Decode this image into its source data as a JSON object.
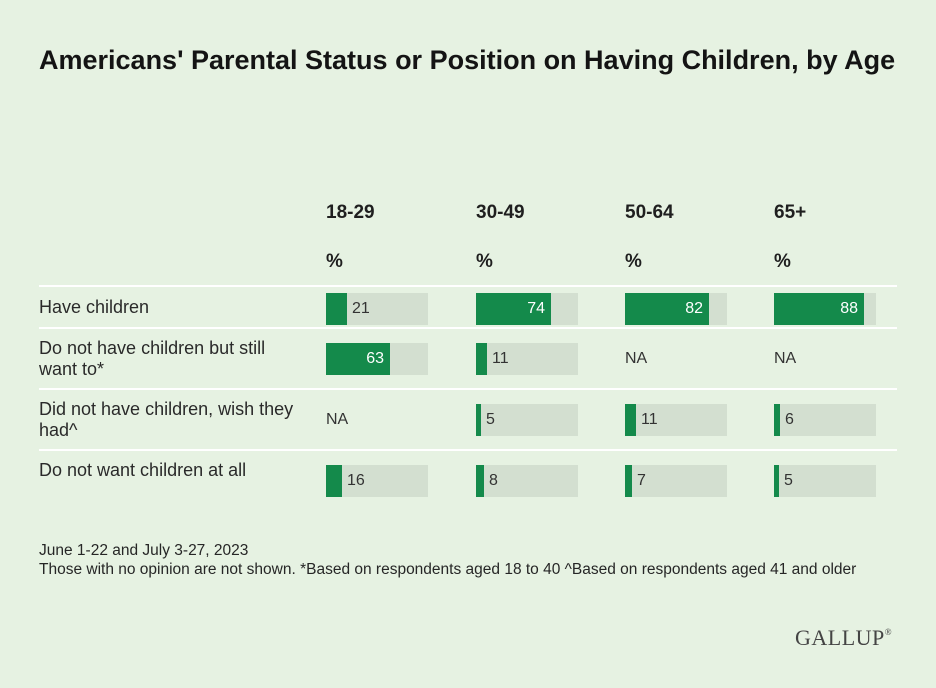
{
  "title": "Americans' Parental Status or Position on Having Children, by Age",
  "columns": [
    "18-29",
    "30-49",
    "50-64",
    "65+"
  ],
  "unit": "%",
  "na_label": "NA",
  "rows": [
    {
      "label": "Have children",
      "values": [
        21,
        74,
        82,
        88
      ]
    },
    {
      "label": "Do not have children but still want to*",
      "values": [
        63,
        11,
        null,
        null
      ]
    },
    {
      "label": "Did not have children, wish they had^",
      "values": [
        null,
        5,
        11,
        6
      ]
    },
    {
      "label": "Do not want children at all",
      "values": [
        16,
        8,
        7,
        5
      ]
    }
  ],
  "colors": {
    "bar": "#148a4b",
    "track": "#d3dfd0",
    "background": "#e6f2e2"
  },
  "chart_data": {
    "type": "bar",
    "orientation": "horizontal",
    "categories": [
      "Have children",
      "Do not have children but still want to*",
      "Did not have children, wish they had^",
      "Do not want children at all"
    ],
    "series": [
      {
        "name": "18-29",
        "values": [
          21,
          63,
          null,
          16
        ]
      },
      {
        "name": "30-49",
        "values": [
          74,
          11,
          5,
          8
        ]
      },
      {
        "name": "50-64",
        "values": [
          82,
          null,
          11,
          7
        ]
      },
      {
        "name": "65+",
        "values": [
          88,
          null,
          6,
          5
        ]
      }
    ],
    "xlim": [
      0,
      100
    ],
    "grid": false
  },
  "footnotes": {
    "dates": "June 1-22 and July 3-27, 2023",
    "note": "Those with no opinion are not shown. *Based on respondents aged 18 to 40 ^Based on respondents aged 41 and older"
  },
  "logo": {
    "text": "GALLUP",
    "mark": "®"
  }
}
